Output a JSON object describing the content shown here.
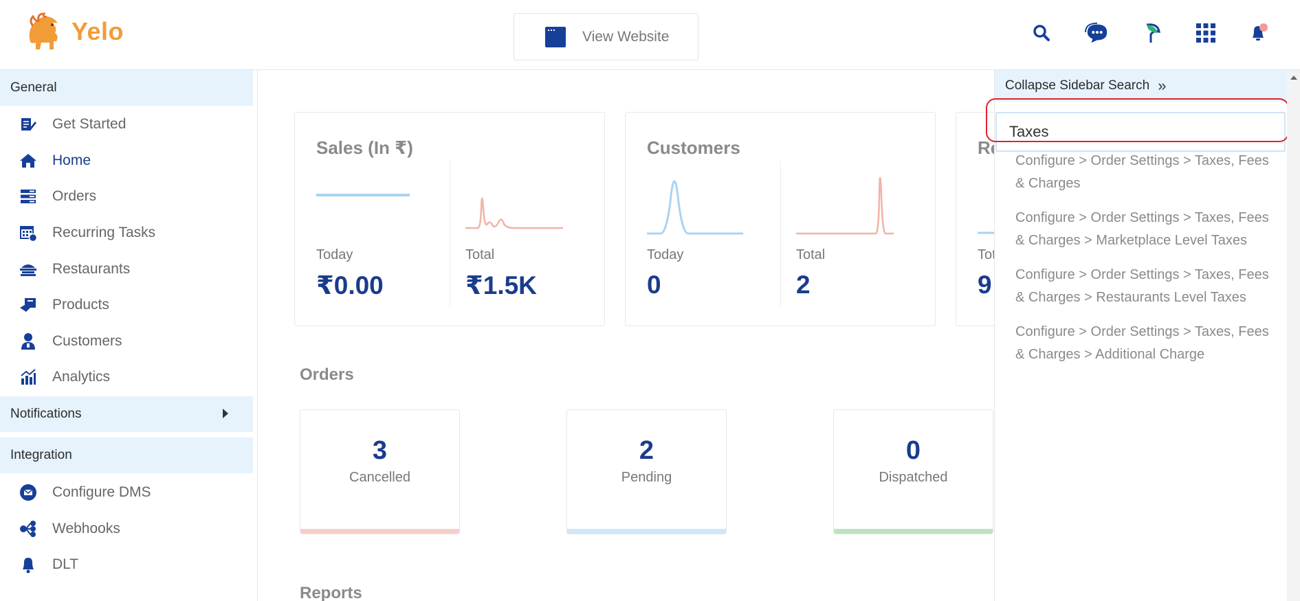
{
  "header": {
    "logo_text": "Yelo",
    "view_website_label": "View Website",
    "icons": [
      "search-icon",
      "support-chat-icon",
      "leaf-icon",
      "apps-grid-icon",
      "notifications-bell-icon"
    ]
  },
  "sidebar": {
    "general_label": "General",
    "items": [
      {
        "label": "Get Started",
        "icon": "get-started-icon"
      },
      {
        "label": "Home",
        "icon": "home-icon",
        "active": true
      },
      {
        "label": "Orders",
        "icon": "orders-icon"
      },
      {
        "label": "Recurring Tasks",
        "icon": "calendar-icon"
      },
      {
        "label": "Restaurants",
        "icon": "restaurant-icon"
      },
      {
        "label": "Products",
        "icon": "products-icon"
      },
      {
        "label": "Customers",
        "icon": "customer-icon"
      },
      {
        "label": "Analytics",
        "icon": "analytics-icon"
      }
    ],
    "notifications_label": "Notifications",
    "integration_label": "Integration",
    "integration_items": [
      {
        "label": "Configure DMS",
        "icon": "dms-icon"
      },
      {
        "label": "Webhooks",
        "icon": "webhooks-icon"
      },
      {
        "label": "DLT",
        "icon": "bell-icon"
      }
    ]
  },
  "main": {
    "cards": [
      {
        "title": "Sales (In ₹)",
        "today_label": "Today",
        "today_value": "₹0.00",
        "total_label": "Total",
        "total_value": "₹1.5K"
      },
      {
        "title": "Customers",
        "today_label": "Today",
        "today_value": "0",
        "total_label": "Total",
        "total_value": "2"
      },
      {
        "title": "Re",
        "total_label": "Tot",
        "total_value": "9"
      }
    ],
    "orders_title": "Orders",
    "orders": [
      {
        "count": "3",
        "status": "Cancelled",
        "color": "#f6d0c8"
      },
      {
        "count": "2",
        "status": "Pending",
        "color": "#cfe6fb"
      },
      {
        "count": "0",
        "status": "Dispatched",
        "color": "#bfe3bf"
      }
    ],
    "reports_title": "Reports"
  },
  "search_panel": {
    "collapse_label": "Collapse Sidebar Search",
    "query": "Taxes",
    "results": [
      "Configure > Order Settings > Taxes, Fees & Charges",
      "Configure > Order Settings > Taxes, Fees & Charges > Marketplace Level Taxes",
      "Configure > Order Settings > Taxes, Fees & Charges > Restaurants Level Taxes",
      "Configure > Order Settings > Taxes, Fees & Charges > Additional Charge"
    ]
  },
  "colors": {
    "brand_blue": "#1a3c8c",
    "accent_orange": "#f29c38",
    "highlight_red": "#d9252f",
    "section_bg": "#e6f3fd"
  }
}
